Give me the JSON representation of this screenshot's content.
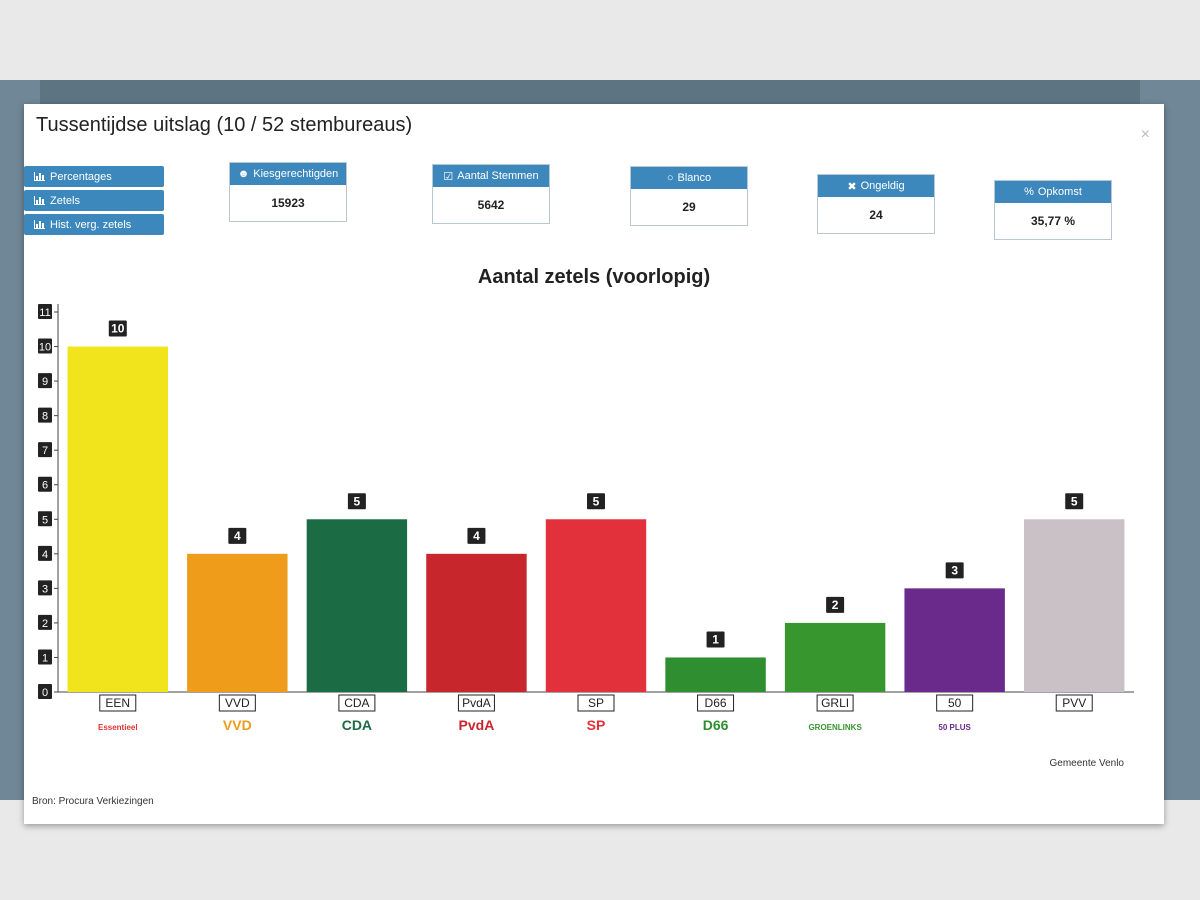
{
  "window": {
    "title": "Tussentijdse uitslag (10 / 52 stembureaus)",
    "close": "×"
  },
  "sidebar": {
    "buttons": [
      "Percentages",
      "Zetels",
      "Hist. verg. zetels"
    ]
  },
  "stats": [
    {
      "label": "Kiesgerechtigden",
      "value": "15923",
      "icon": "users-icon"
    },
    {
      "label": "Aantal Stemmen",
      "value": "5642",
      "icon": "check-square-icon"
    },
    {
      "label": "Blanco",
      "value": "29",
      "icon": "circle-icon"
    },
    {
      "label": "Ongeldig",
      "value": "24",
      "icon": "x-icon"
    },
    {
      "label": "Opkomst",
      "value": "35,77 %",
      "icon": "percent-icon"
    }
  ],
  "footer": {
    "source": "Bron: Procura Verkiezingen",
    "municipality": "Gemeente Venlo"
  },
  "chart_data": {
    "type": "bar",
    "title": "Aantal zetels (voorlopig)",
    "xlabel": "",
    "ylabel": "",
    "ylim": [
      0,
      11
    ],
    "yticks": [
      0,
      1,
      2,
      3,
      4,
      5,
      6,
      7,
      8,
      9,
      10,
      11
    ],
    "categories": [
      "EEN",
      "VVD",
      "CDA",
      "PvdA",
      "SP",
      "D66",
      "GRLI",
      "50",
      "PVV"
    ],
    "values": [
      10,
      4,
      5,
      4,
      5,
      1,
      2,
      3,
      5
    ],
    "colors": [
      "#f2e41c",
      "#ee9c1a",
      "#1b6b45",
      "#c8262d",
      "#e2313a",
      "#2f8e2f",
      "#38962f",
      "#6a2a8c",
      "#c9c1c6"
    ],
    "logo_labels": [
      "Essentieel",
      "VVD",
      "CDA",
      "PvdA",
      "SP",
      "D66",
      "GROENLINKS",
      "50 PLUS",
      ""
    ],
    "grid": false,
    "legend": "none"
  }
}
